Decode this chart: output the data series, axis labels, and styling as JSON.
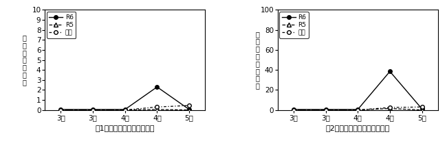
{
  "chart1": {
    "title": "図1　疫病の発病株率の推移",
    "ylabel_chars": [
      "発",
      "病",
      "株",
      "率",
      "（",
      "％",
      "）"
    ],
    "ylim": [
      0,
      10
    ],
    "yticks": [
      0,
      1,
      2,
      3,
      4,
      5,
      6,
      7,
      8,
      9,
      10
    ],
    "xticklabels": [
      "3前",
      "3後",
      "4前",
      "4後",
      "5前"
    ],
    "R6": [
      0.05,
      0.05,
      0.05,
      2.3,
      0.05
    ],
    "R5": [
      0.0,
      0.0,
      0.0,
      0.05,
      0.0
    ],
    "heinen": [
      0.0,
      0.0,
      0.0,
      0.3,
      0.45
    ]
  },
  "chart2": {
    "title": "図2　疫病の発生圃場率の推移",
    "ylabel_chars": [
      "発",
      "生",
      "圃",
      "場",
      "率",
      "（",
      "％",
      "）"
    ],
    "ylim": [
      0,
      100
    ],
    "yticks": [
      0,
      20,
      40,
      60,
      80,
      100
    ],
    "xticklabels": [
      "3前",
      "3後",
      "4前",
      "4後",
      "5前"
    ],
    "R6": [
      0.5,
      0.5,
      0.5,
      38.5,
      1.0
    ],
    "R5": [
      0.0,
      0.0,
      0.0,
      1.5,
      0.0
    ],
    "heinen": [
      0.0,
      0.0,
      0.0,
      2.5,
      3.0
    ]
  },
  "legend_labels": [
    "R6",
    "R5",
    "平年"
  ],
  "background_color": "#ffffff"
}
